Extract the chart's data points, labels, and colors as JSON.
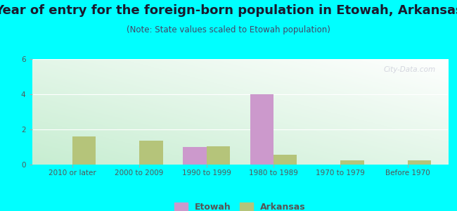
{
  "title": "Year of entry for the foreign-born population in Etowah, Arkansas",
  "subtitle": "(Note: State values scaled to Etowah population)",
  "categories": [
    "2010 or later",
    "2000 to 2009",
    "1990 to 1999",
    "1980 to 1989",
    "1970 to 1979",
    "Before 1970"
  ],
  "etowah_values": [
    0,
    0,
    1.0,
    4.0,
    0,
    0
  ],
  "arkansas_values": [
    1.6,
    1.35,
    1.05,
    0.55,
    0.25,
    0.25
  ],
  "etowah_color": "#cc99cc",
  "arkansas_color": "#b5c47a",
  "background_outer": "#00ffff",
  "ylim": [
    0,
    6
  ],
  "yticks": [
    0,
    2,
    4,
    6
  ],
  "bar_width": 0.35,
  "title_fontsize": 13,
  "subtitle_fontsize": 8.5,
  "tick_fontsize": 7.5,
  "legend_fontsize": 9,
  "watermark_text": "City-Data.com"
}
